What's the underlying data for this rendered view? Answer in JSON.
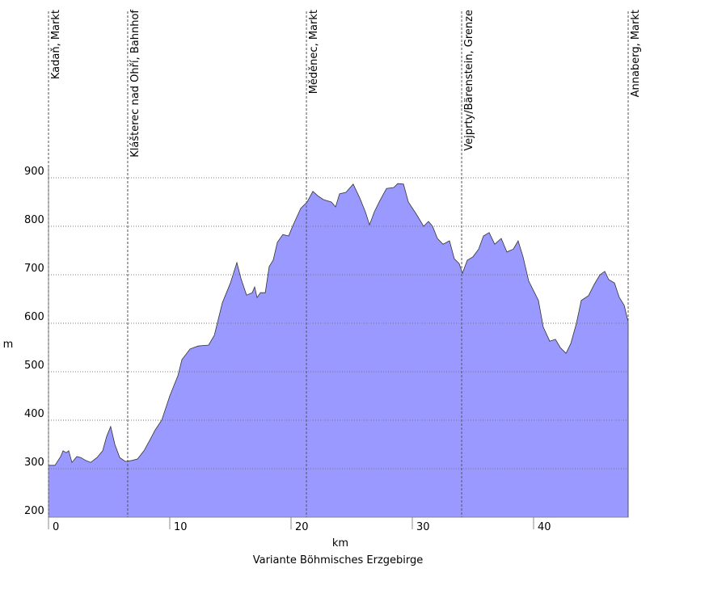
{
  "chart_data": {
    "type": "area",
    "title": "Variante Böhmisches Erzgebirge",
    "x_label": "km",
    "y_label": "m",
    "color": "#9999ff",
    "x": [
      0,
      0.53,
      1,
      1.2,
      1.47,
      1.67,
      1.93,
      2.33,
      2.67,
      3.07,
      3.47,
      4,
      4.47,
      4.8,
      5.13,
      5.47,
      5.87,
      6.33,
      6.87,
      7.33,
      7.87,
      8.33,
      8.8,
      9.33,
      10,
      10.67,
      11,
      11.67,
      12.33,
      13.2,
      13.67,
      14.33,
      15,
      15.53,
      15.87,
      16.33,
      16.8,
      17,
      17.2,
      17.47,
      17.87,
      18.2,
      18.53,
      18.87,
      19.33,
      19.8,
      20.13,
      20.8,
      21.33,
      21.8,
      22.2,
      22.67,
      23.33,
      23.67,
      24,
      24.53,
      25.13,
      25.67,
      26.13,
      26.47,
      26.87,
      27.33,
      27.87,
      28.47,
      28.8,
      29.27,
      29.67,
      30.33,
      30.93,
      31.33,
      31.67,
      32.07,
      32.53,
      33.07,
      33.47,
      33.87,
      34.13,
      34.53,
      35,
      35.47,
      35.87,
      36.33,
      36.8,
      37.33,
      37.8,
      38.33,
      38.73,
      39.13,
      39.6,
      40,
      40.4,
      40.8,
      41.33,
      41.8,
      42.2,
      42.67,
      43.07,
      43.53,
      43.93,
      44.53,
      45,
      45.47,
      45.87,
      46.2,
      46.67,
      47.07,
      47.47,
      47.8
    ],
    "values": [
      307,
      307,
      325,
      337,
      333,
      337,
      313,
      325,
      323,
      317,
      313,
      323,
      337,
      367,
      387,
      350,
      323,
      315,
      317,
      320,
      337,
      358,
      380,
      400,
      450,
      492,
      525,
      547,
      553,
      555,
      575,
      642,
      683,
      725,
      692,
      658,
      663,
      675,
      653,
      663,
      663,
      717,
      730,
      767,
      783,
      780,
      800,
      837,
      850,
      872,
      863,
      855,
      850,
      840,
      867,
      870,
      887,
      858,
      830,
      803,
      830,
      853,
      878,
      880,
      888,
      887,
      850,
      825,
      800,
      810,
      800,
      775,
      763,
      770,
      733,
      723,
      703,
      730,
      737,
      753,
      780,
      787,
      763,
      775,
      747,
      753,
      770,
      737,
      687,
      667,
      647,
      592,
      563,
      567,
      550,
      538,
      558,
      600,
      647,
      657,
      680,
      700,
      707,
      690,
      683,
      653,
      637,
      603
    ],
    "waypoints": [
      {
        "km": 0,
        "label": "Kadaň, Markt"
      },
      {
        "km": 6.53,
        "label": "Klášterec nad Ohří, Bahnhof"
      },
      {
        "km": 21.27,
        "label": "Měděnec, Markt"
      },
      {
        "km": 34.07,
        "label": "Vejprty/Bärenstein, Grenze"
      },
      {
        "km": 47.8,
        "label": "Annaberg, Markt"
      }
    ],
    "xlim": [
      0,
      47.8
    ],
    "ylim": [
      200,
      925
    ],
    "xticks": [
      0,
      10,
      20,
      30,
      40
    ],
    "yticks": [
      200,
      300,
      400,
      500,
      600,
      700,
      800,
      900
    ],
    "grid": true
  }
}
